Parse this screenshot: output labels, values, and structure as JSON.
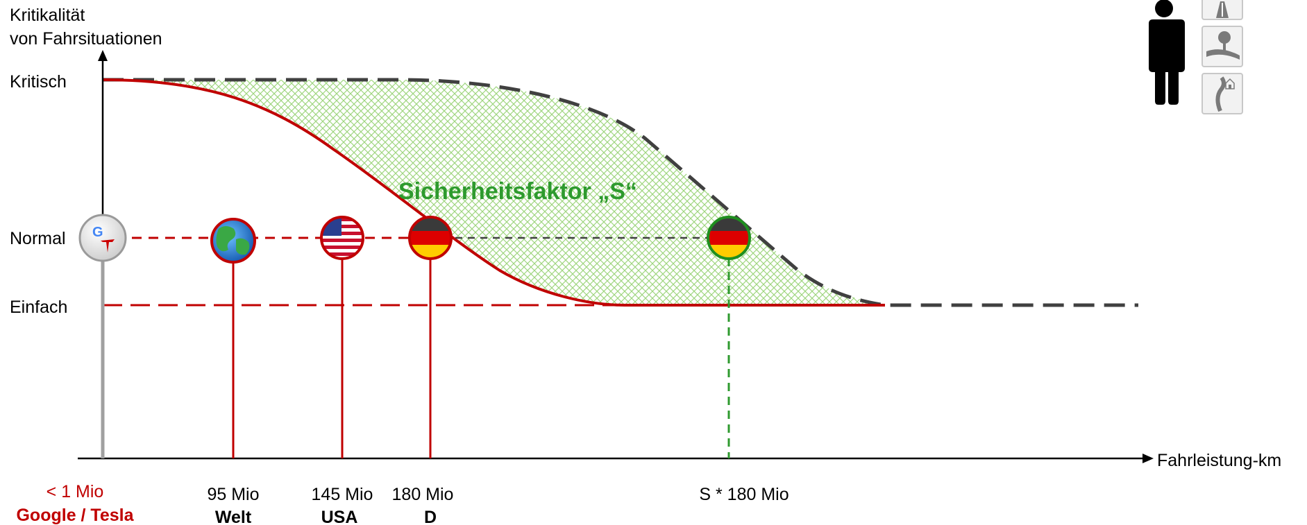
{
  "y_axis": {
    "label_line1": "Kritikalität",
    "label_line2": "von Fahrsituationen",
    "levels": [
      "Kritisch",
      "Normal",
      "Einfach"
    ]
  },
  "x_axis": {
    "label": "Fahrleistung-km"
  },
  "shaded_region_label": "Sicherheitsfaktor „S“",
  "markers": [
    {
      "id": "google-tesla",
      "km": "< 1 Mio",
      "name": "Google / Tesla",
      "icon": "google-tesla-logo"
    },
    {
      "id": "welt",
      "km": "95 Mio",
      "name": "Welt",
      "icon": "globe"
    },
    {
      "id": "usa",
      "km": "145 Mio",
      "name": "USA",
      "icon": "us-flag"
    },
    {
      "id": "d",
      "km": "180 Mio",
      "name": "D",
      "icon": "german-flag"
    },
    {
      "id": "s",
      "km": "S * 180 Mio",
      "name": "",
      "icon": "german-flag"
    }
  ],
  "colors": {
    "red": "#c00000",
    "green": "#2e9a2e",
    "hatch": "#9fd67f",
    "dark_dash": "#404040"
  },
  "right_icons": [
    "person-icon",
    "highway-road-icon",
    "rural-road-icon",
    "urban-road-icon"
  ]
}
